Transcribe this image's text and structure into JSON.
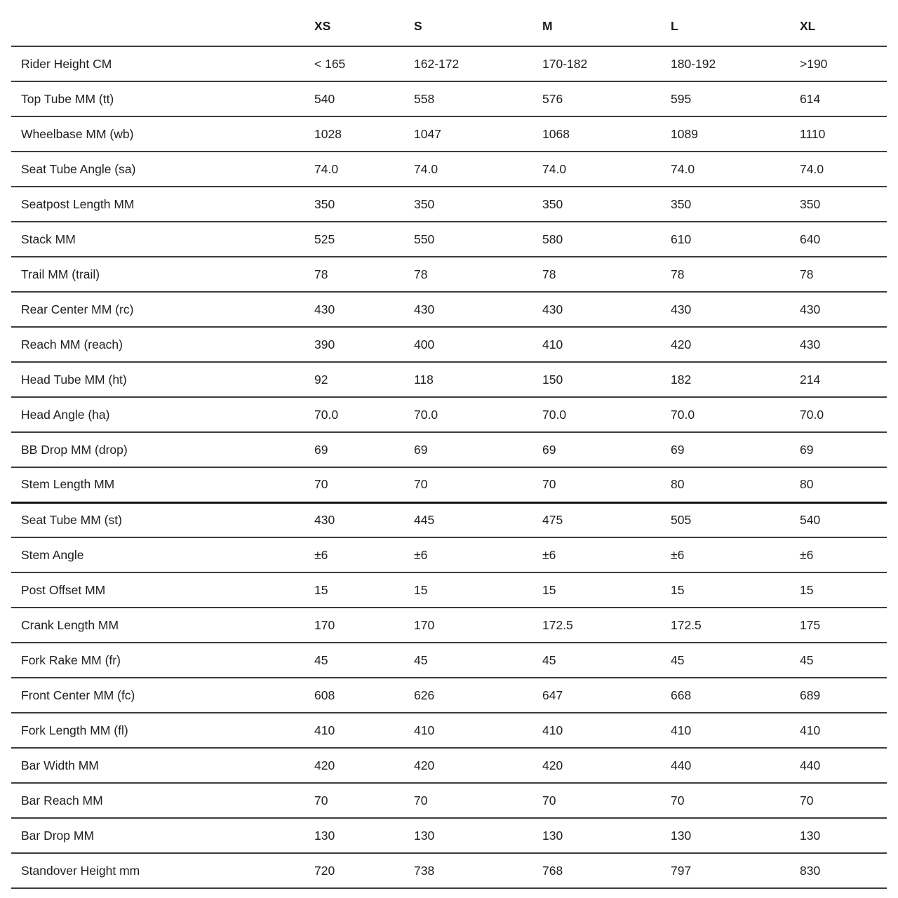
{
  "page": {
    "background_color": "#ffffff",
    "text_color": "#1f1f1f",
    "divider_color": "#3c3c3c",
    "thick_divider_color": "#141414"
  },
  "table": {
    "columns": [
      "XS",
      "S",
      "M",
      "L",
      "XL"
    ],
    "rows": [
      {
        "label": "Rider Height CM",
        "values": [
          "< 165",
          "162-172",
          "170-182",
          "180-192",
          ">190"
        ]
      },
      {
        "label": "Top Tube MM (tt)",
        "values": [
          "540",
          "558",
          "576",
          "595",
          "614"
        ]
      },
      {
        "label": "Wheelbase MM (wb)",
        "values": [
          "1028",
          "1047",
          "1068",
          "1089",
          "1110"
        ]
      },
      {
        "label": "Seat Tube Angle (sa)",
        "values": [
          "74.0",
          "74.0",
          "74.0",
          "74.0",
          "74.0"
        ]
      },
      {
        "label": "Seatpost Length MM",
        "values": [
          "350",
          "350",
          "350",
          "350",
          "350"
        ]
      },
      {
        "label": "Stack MM",
        "values": [
          "525",
          "550",
          "580",
          "610",
          "640"
        ]
      },
      {
        "label": "Trail MM (trail)",
        "values": [
          "78",
          "78",
          "78",
          "78",
          "78"
        ]
      },
      {
        "label": "Rear Center MM (rc)",
        "values": [
          "430",
          "430",
          "430",
          "430",
          "430"
        ]
      },
      {
        "label": "Reach MM (reach)",
        "values": [
          "390",
          "400",
          "410",
          "420",
          "430"
        ]
      },
      {
        "label": "Head Tube MM (ht)",
        "values": [
          "92",
          "118",
          "150",
          "182",
          "214"
        ]
      },
      {
        "label": "Head Angle (ha)",
        "values": [
          "70.0",
          "70.0",
          "70.0",
          "70.0",
          "70.0"
        ]
      },
      {
        "label": "BB Drop MM (drop)",
        "values": [
          "69",
          "69",
          "69",
          "69",
          "69"
        ]
      },
      {
        "label": "Stem Length MM",
        "values": [
          "70",
          "70",
          "70",
          "80",
          "80"
        ]
      },
      {
        "label": "Seat Tube MM (st)",
        "values": [
          "430",
          "445",
          "475",
          "505",
          "540"
        ],
        "section_break": true
      },
      {
        "label": "Stem Angle",
        "values": [
          "±6",
          "±6",
          "±6",
          "±6",
          "±6"
        ]
      },
      {
        "label": "Post Offset MM",
        "values": [
          "15",
          "15",
          "15",
          "15",
          "15"
        ]
      },
      {
        "label": "Crank Length MM",
        "values": [
          "170",
          "170",
          "172.5",
          "172.5",
          "175"
        ]
      },
      {
        "label": "Fork Rake MM (fr)",
        "values": [
          "45",
          "45",
          "45",
          "45",
          "45"
        ]
      },
      {
        "label": "Front Center MM (fc)",
        "values": [
          "608",
          "626",
          "647",
          "668",
          "689"
        ]
      },
      {
        "label": "Fork Length MM (fl)",
        "values": [
          "410",
          "410",
          "410",
          "410",
          "410"
        ]
      },
      {
        "label": "Bar Width MM",
        "values": [
          "420",
          "420",
          "420",
          "440",
          "440"
        ]
      },
      {
        "label": "Bar Reach MM",
        "values": [
          "70",
          "70",
          "70",
          "70",
          "70"
        ]
      },
      {
        "label": "Bar Drop MM",
        "values": [
          "130",
          "130",
          "130",
          "130",
          "130"
        ]
      },
      {
        "label": "Standover Height mm",
        "values": [
          "720",
          "738",
          "768",
          "797",
          "830"
        ]
      }
    ]
  }
}
